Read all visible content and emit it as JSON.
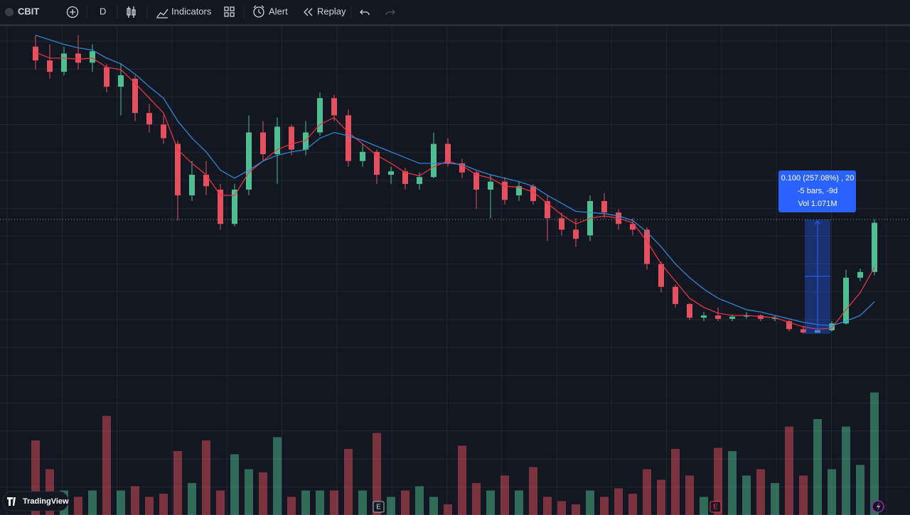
{
  "toolbar": {
    "symbol": "CBIT",
    "interval": "D",
    "indicators": "Indicators",
    "alert": "Alert",
    "replay": "Replay"
  },
  "chart_data": {
    "type": "candlestick",
    "ylim": [
      0,
      0.3
    ],
    "y2lim": [
      0,
      1.2
    ],
    "up_color": "#4fbf92",
    "down_color": "#e4505e",
    "candles": {
      "open": [
        0.29,
        0.278,
        0.268,
        0.284,
        0.276,
        0.272,
        0.255,
        0.262,
        0.232,
        0.222,
        0.205,
        0.16,
        0.178,
        0.165,
        0.135,
        0.165,
        0.215,
        0.196,
        0.22,
        0.2,
        0.215,
        0.245,
        0.23,
        0.19,
        0.198,
        0.178,
        0.181,
        0.17,
        0.176,
        0.205,
        0.188,
        0.18,
        0.165,
        0.172,
        0.16,
        0.168,
        0.155,
        0.14,
        0.13,
        0.125,
        0.155,
        0.145,
        0.135,
        0.13,
        0.1,
        0.08,
        0.065,
        0.053,
        0.055,
        0.052,
        0.054,
        0.055,
        0.052,
        0.05,
        0.043,
        0.04,
        0.042,
        0.048,
        0.088,
        0.093
      ],
      "high": [
        0.3,
        0.292,
        0.29,
        0.3,
        0.292,
        0.275,
        0.275,
        0.265,
        0.24,
        0.23,
        0.208,
        0.19,
        0.19,
        0.17,
        0.17,
        0.23,
        0.225,
        0.228,
        0.222,
        0.225,
        0.25,
        0.248,
        0.235,
        0.205,
        0.2,
        0.185,
        0.184,
        0.18,
        0.215,
        0.21,
        0.192,
        0.182,
        0.178,
        0.176,
        0.172,
        0.17,
        0.16,
        0.145,
        0.14,
        0.16,
        0.162,
        0.148,
        0.14,
        0.132,
        0.102,
        0.082,
        0.066,
        0.058,
        0.062,
        0.056,
        0.058,
        0.056,
        0.055,
        0.051,
        0.046,
        0.043,
        0.05,
        0.095,
        0.096,
        0.139
      ],
      "low": [
        0.27,
        0.262,
        0.265,
        0.27,
        0.268,
        0.25,
        0.23,
        0.225,
        0.215,
        0.205,
        0.138,
        0.155,
        0.16,
        0.13,
        0.133,
        0.16,
        0.19,
        0.17,
        0.195,
        0.195,
        0.212,
        0.225,
        0.185,
        0.185,
        0.17,
        0.17,
        0.165,
        0.165,
        0.175,
        0.185,
        0.175,
        0.148,
        0.14,
        0.152,
        0.155,
        0.152,
        0.12,
        0.125,
        0.115,
        0.12,
        0.14,
        0.13,
        0.125,
        0.095,
        0.075,
        0.062,
        0.051,
        0.05,
        0.05,
        0.05,
        0.052,
        0.05,
        0.05,
        0.041,
        0.039,
        0.039,
        0.041,
        0.047,
        0.085,
        0.09
      ],
      "close": [
        0.278,
        0.268,
        0.284,
        0.276,
        0.286,
        0.255,
        0.265,
        0.232,
        0.222,
        0.21,
        0.16,
        0.178,
        0.168,
        0.135,
        0.165,
        0.215,
        0.196,
        0.22,
        0.2,
        0.215,
        0.245,
        0.23,
        0.19,
        0.198,
        0.178,
        0.181,
        0.17,
        0.176,
        0.205,
        0.188,
        0.18,
        0.165,
        0.172,
        0.156,
        0.168,
        0.155,
        0.14,
        0.13,
        0.122,
        0.155,
        0.145,
        0.135,
        0.13,
        0.1,
        0.08,
        0.065,
        0.053,
        0.055,
        0.052,
        0.054,
        0.055,
        0.052,
        0.053,
        0.043,
        0.04,
        0.042,
        0.048,
        0.088,
        0.093,
        0.136
      ]
    },
    "volume": [
      0.7,
      0.43,
      0.23,
      0.17,
      0.23,
      0.93,
      0.23,
      0.27,
      0.17,
      0.2,
      0.6,
      0.3,
      0.7,
      0.23,
      0.57,
      0.43,
      0.4,
      0.73,
      0.17,
      0.23,
      0.23,
      0.23,
      0.62,
      0.23,
      0.77,
      0.17,
      0.23,
      0.27,
      0.17,
      0.1,
      0.65,
      0.3,
      0.23,
      0.37,
      0.23,
      0.45,
      0.17,
      0.13,
      0.1,
      0.23,
      0.17,
      0.25,
      0.2,
      0.43,
      0.33,
      0.62,
      0.37,
      0.17,
      0.63,
      0.6,
      0.37,
      0.43,
      0.3,
      0.83,
      0.37,
      0.9,
      0.43,
      0.83,
      0.47,
      1.15
    ],
    "series": [
      {
        "color": "#f23645",
        "values": [
          0.285,
          0.28,
          0.28,
          0.279,
          0.28,
          0.272,
          0.27,
          0.258,
          0.245,
          0.232,
          0.2,
          0.188,
          0.178,
          0.16,
          0.16,
          0.18,
          0.19,
          0.2,
          0.205,
          0.208,
          0.222,
          0.228,
          0.215,
          0.205,
          0.195,
          0.188,
          0.18,
          0.177,
          0.185,
          0.19,
          0.186,
          0.178,
          0.175,
          0.168,
          0.167,
          0.163,
          0.153,
          0.143,
          0.135,
          0.14,
          0.142,
          0.14,
          0.136,
          0.12,
          0.1,
          0.085,
          0.07,
          0.062,
          0.057,
          0.055,
          0.055,
          0.054,
          0.053,
          0.049,
          0.045,
          0.043,
          0.044,
          0.06,
          0.075,
          0.097
        ]
      },
      {
        "color": "#2f8fe0",
        "values": [
          0.3,
          0.296,
          0.292,
          0.289,
          0.287,
          0.28,
          0.275,
          0.266,
          0.255,
          0.245,
          0.225,
          0.21,
          0.198,
          0.182,
          0.175,
          0.182,
          0.19,
          0.195,
          0.198,
          0.2,
          0.21,
          0.215,
          0.212,
          0.208,
          0.203,
          0.198,
          0.193,
          0.188,
          0.188,
          0.188,
          0.187,
          0.182,
          0.178,
          0.175,
          0.172,
          0.168,
          0.16,
          0.153,
          0.146,
          0.145,
          0.144,
          0.142,
          0.138,
          0.128,
          0.115,
          0.1,
          0.088,
          0.078,
          0.07,
          0.065,
          0.06,
          0.058,
          0.055,
          0.052,
          0.049,
          0.047,
          0.046,
          0.05,
          0.055,
          0.067
        ]
      }
    ],
    "measure": {
      "lines": [
        "0.100 (257.08%) , 20",
        "-5 bars, -9d",
        "Vol 1.071M"
      ]
    }
  },
  "events": [
    "E",
    "E"
  ],
  "branding": "TradingView"
}
